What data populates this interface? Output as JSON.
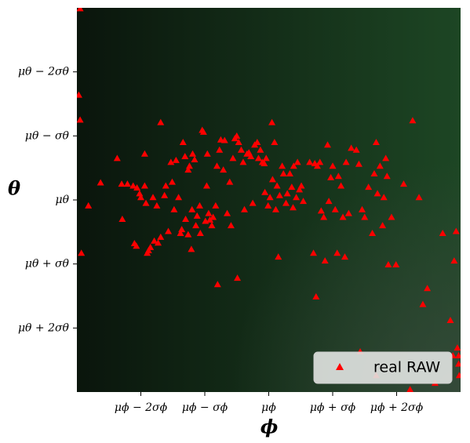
{
  "chart_data": {
    "type": "scatter",
    "x_label": "ϕ",
    "y_label": "θ",
    "xlim": [
      -3,
      3
    ],
    "ylim": [
      -3,
      3
    ],
    "y_inverted": true,
    "xticks": [
      {
        "value": -2,
        "label": "μϕ − 2σϕ"
      },
      {
        "value": -1,
        "label": "μϕ − σϕ"
      },
      {
        "value": 0,
        "label": "μϕ"
      },
      {
        "value": 1,
        "label": "μϕ + σϕ"
      },
      {
        "value": 2,
        "label": "μϕ + 2σϕ"
      }
    ],
    "yticks": [
      {
        "value": -2,
        "label": "μθ − 2σθ"
      },
      {
        "value": -1,
        "label": "μθ − σθ"
      },
      {
        "value": 0,
        "label": "μθ"
      },
      {
        "value": 1,
        "label": "μθ + σθ"
      },
      {
        "value": 2,
        "label": "μθ + 2σθ"
      }
    ],
    "legend_position": "lower right",
    "series": [
      {
        "name": "real RAW",
        "color": "red",
        "marker": "triangle",
        "x": [
          -2.95,
          -2.97,
          -2.95,
          -2.93,
          -2.82,
          -2.63,
          -2.37,
          -2.3,
          -2.29,
          -2.21,
          -2.12,
          -2.1,
          -2.07,
          -2.06,
          -2.02,
          -2.0,
          -1.94,
          -1.94,
          -1.92,
          -1.9,
          -1.88,
          -1.85,
          -1.81,
          -1.79,
          -1.75,
          -1.73,
          -1.69,
          -1.69,
          -1.63,
          -1.61,
          -1.57,
          -1.53,
          -1.51,
          -1.48,
          -1.45,
          -1.41,
          -1.38,
          -1.36,
          -1.34,
          -1.31,
          -1.3,
          -1.26,
          -1.26,
          -1.24,
          -1.21,
          -1.2,
          -1.19,
          -1.16,
          -1.14,
          -1.12,
          -1.08,
          -1.07,
          -1.04,
          -1.02,
          -0.99,
          -0.97,
          -0.96,
          -0.94,
          -0.92,
          -0.89,
          -0.87,
          -0.83,
          -0.81,
          -0.8,
          -0.77,
          -0.75,
          -0.71,
          -0.69,
          -0.65,
          -0.61,
          -0.59,
          -0.56,
          -0.53,
          -0.5,
          -0.49,
          -0.47,
          -0.43,
          -0.4,
          -0.38,
          -0.34,
          -0.31,
          -0.28,
          -0.25,
          -0.22,
          -0.18,
          -0.16,
          -0.13,
          -0.1,
          -0.07,
          -0.06,
          -0.04,
          -0.01,
          0.02,
          0.05,
          0.06,
          0.09,
          0.11,
          0.13,
          0.15,
          0.17,
          0.21,
          0.23,
          0.27,
          0.29,
          0.33,
          0.36,
          0.38,
          0.39,
          0.43,
          0.45,
          0.48,
          0.51,
          0.54,
          0.64,
          0.7,
          0.72,
          0.74,
          0.76,
          0.8,
          0.82,
          0.86,
          0.88,
          0.92,
          0.94,
          0.97,
          1.0,
          1.04,
          1.07,
          1.09,
          1.13,
          1.16,
          1.19,
          1.21,
          1.25,
          1.29,
          1.37,
          1.41,
          1.46,
          1.5,
          1.56,
          1.62,
          1.65,
          1.68,
          1.7,
          1.74,
          1.78,
          1.8,
          1.83,
          1.85,
          1.87,
          1.92,
          1.99,
          2.11,
          2.25,
          2.35,
          2.41,
          2.48,
          2.72,
          2.84,
          2.9,
          2.93,
          2.95,
          2.97,
          2.97,
          2.98,
          2.88,
          2.6,
          2.21,
          1.43,
          1.68
        ],
        "y": [
          -2.99,
          -1.64,
          -1.25,
          0.83,
          0.09,
          -0.27,
          -0.65,
          -0.25,
          0.3,
          -0.25,
          -0.22,
          0.68,
          0.72,
          -0.19,
          -0.1,
          -0.04,
          -0.72,
          -0.22,
          0.05,
          0.83,
          0.79,
          0.74,
          -0.04,
          0.64,
          0.09,
          0.67,
          -1.21,
          0.58,
          -0.07,
          -0.22,
          0.49,
          -0.59,
          -0.28,
          0.15,
          -0.62,
          -0.04,
          0.52,
          0.46,
          -0.9,
          -0.68,
          0.3,
          -0.47,
          0.54,
          -0.53,
          0.77,
          0.15,
          -0.72,
          -0.63,
          0.4,
          0.25,
          0.09,
          0.52,
          -1.09,
          -1.06,
          0.33,
          -0.22,
          -0.72,
          0.21,
          0.31,
          0.4,
          0.27,
          0.09,
          -0.53,
          1.32,
          -0.78,
          -0.94,
          -0.47,
          -0.93,
          0.21,
          -0.28,
          0.4,
          -0.65,
          -0.96,
          -1.0,
          1.22,
          -0.9,
          -0.78,
          -0.59,
          0.15,
          -0.72,
          -0.74,
          -0.68,
          0.05,
          -0.86,
          -0.9,
          -0.65,
          -0.78,
          -0.59,
          -0.57,
          -0.12,
          -0.65,
          0.09,
          -0.04,
          -1.21,
          -0.32,
          -0.9,
          0.15,
          -0.22,
          0.89,
          -0.07,
          -0.53,
          -0.41,
          0.05,
          -0.1,
          -0.41,
          -0.2,
          0.12,
          -0.53,
          -0.04,
          -0.59,
          -0.16,
          -0.22,
          0.02,
          -0.59,
          0.83,
          -0.57,
          1.51,
          -0.53,
          -0.59,
          0.17,
          0.27,
          0.95,
          -0.86,
          0.02,
          -0.35,
          -0.53,
          0.15,
          0.83,
          -0.37,
          -0.22,
          0.27,
          0.89,
          -0.59,
          0.21,
          -0.81,
          -0.78,
          -0.56,
          0.15,
          0.27,
          -0.2,
          0.52,
          -0.41,
          -0.9,
          -0.1,
          -0.53,
          0.4,
          -0.04,
          -0.65,
          -0.37,
          1.01,
          0.27,
          1.01,
          -0.25,
          -1.24,
          -0.04,
          1.63,
          1.38,
          0.52,
          1.88,
          0.95,
          0.49,
          2.31,
          2.43,
          2.56,
          2.74,
          2.43,
          2.86,
          2.96,
          2.37,
          2.74
        ]
      }
    ]
  }
}
